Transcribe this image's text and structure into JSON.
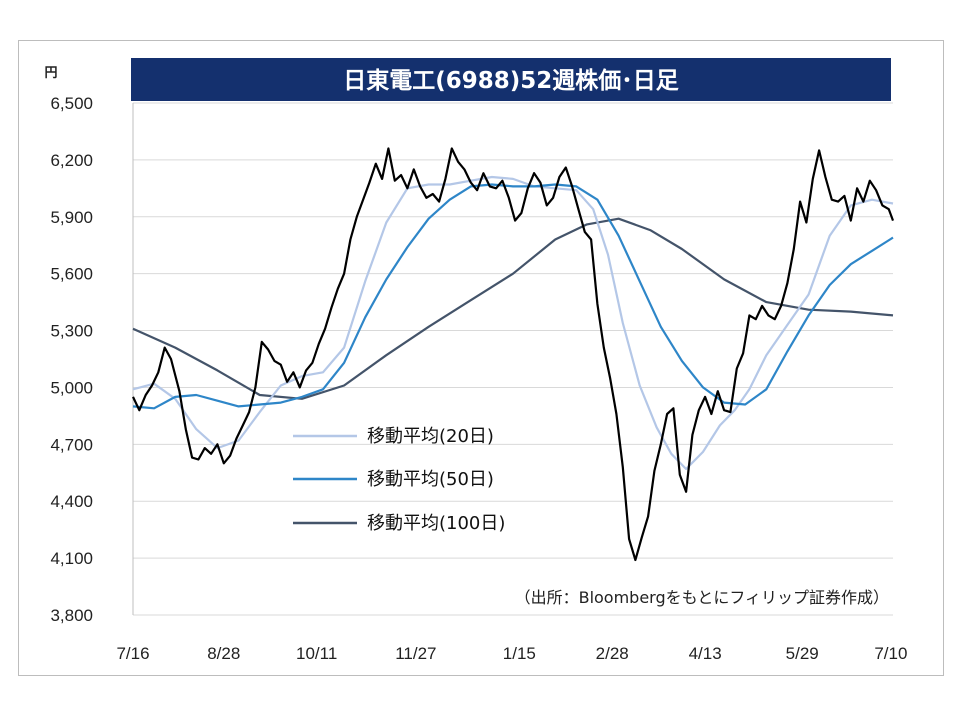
{
  "chart_data": {
    "type": "line",
    "title": "日東電工(6988)52週株価･日足",
    "unit": "円",
    "xlabel": "",
    "ylabel": "",
    "ylim": [
      3800,
      6500
    ],
    "y_ticks": [
      6500,
      6200,
      5900,
      5600,
      5300,
      5000,
      4700,
      4400,
      4100,
      3800
    ],
    "y_tick_labels": [
      "6,500",
      "6,200",
      "5,900",
      "5,600",
      "5,300",
      "5,000",
      "4,700",
      "4,400",
      "4,100",
      "3,800"
    ],
    "x_tick_labels": [
      "7/16",
      "8/28",
      "10/11",
      "11/27",
      "1/15",
      "2/28",
      "4/13",
      "5/29",
      "7/10"
    ],
    "x_range": [
      0,
      360
    ],
    "x_tick_days": [
      0,
      43,
      87,
      134,
      183,
      227,
      271,
      317,
      359
    ],
    "grid": true,
    "legend_position": "center-left",
    "source": "（出所：Bloombergをもとにフィリップ証券作成）",
    "colors": {
      "price": "#000000",
      "ma20": "#b4c7e7",
      "ma50": "#2e86c8",
      "ma100": "#44546a",
      "title_bg": "#14306e",
      "grid": "#d9d9d9"
    },
    "series": [
      {
        "key": "price",
        "name": "",
        "x": [
          0,
          3,
          6,
          9,
          12,
          15,
          18,
          22,
          25,
          28,
          31,
          34,
          37,
          40,
          43,
          46,
          49,
          52,
          55,
          58,
          61,
          64,
          67,
          70,
          73,
          76,
          79,
          82,
          85,
          88,
          91,
          94,
          97,
          100,
          103,
          106,
          109,
          112,
          115,
          118,
          121,
          124,
          127,
          130,
          133,
          136,
          139,
          142,
          145,
          148,
          151,
          154,
          157,
          160,
          163,
          166,
          169,
          172,
          175,
          178,
          181,
          184,
          187,
          190,
          193,
          196,
          199,
          202,
          205,
          208,
          211,
          214,
          217,
          220,
          223,
          226,
          229,
          232,
          235,
          238,
          241,
          244,
          247,
          250,
          253,
          256,
          259,
          262,
          265,
          268,
          271,
          274,
          277,
          280,
          283,
          286,
          289,
          292,
          295,
          298,
          301,
          304,
          307,
          310,
          313,
          316,
          319,
          322,
          325,
          328,
          331,
          334,
          337,
          340,
          343,
          346,
          349,
          352,
          355,
          358,
          360
        ],
        "values": [
          4950,
          4880,
          4960,
          5010,
          5080,
          5210,
          5150,
          4980,
          4780,
          4630,
          4620,
          4680,
          4650,
          4700,
          4600,
          4640,
          4730,
          4800,
          4870,
          5000,
          5240,
          5200,
          5140,
          5120,
          5030,
          5080,
          5000,
          5090,
          5130,
          5230,
          5310,
          5420,
          5520,
          5600,
          5780,
          5900,
          5990,
          6080,
          6180,
          6100,
          6260,
          6090,
          6120,
          6050,
          6150,
          6060,
          6000,
          6020,
          5980,
          6100,
          6260,
          6190,
          6150,
          6080,
          6040,
          6130,
          6060,
          6050,
          6090,
          6000,
          5880,
          5920,
          6050,
          6130,
          6080,
          5960,
          6000,
          6110,
          6160,
          6060,
          5940,
          5820,
          5780,
          5440,
          5210,
          5050,
          4860,
          4580,
          4200,
          4090,
          4210,
          4320,
          4560,
          4700,
          4860,
          4890,
          4540,
          4450,
          4750,
          4880,
          4950,
          4860,
          4980,
          4880,
          4870,
          5100,
          5180,
          5380,
          5360,
          5430,
          5380,
          5360,
          5430,
          5550,
          5730,
          5980,
          5870,
          6100,
          6250,
          6110,
          5990,
          5980,
          6010,
          5880,
          6050,
          5980,
          6090,
          6040,
          5960,
          5940,
          5880
        ]
      },
      {
        "key": "ma20",
        "name": "移動平均(20日)",
        "x": [
          0,
          10,
          20,
          30,
          40,
          50,
          60,
          70,
          80,
          90,
          100,
          110,
          120,
          130,
          140,
          150,
          160,
          170,
          180,
          190,
          200,
          210,
          218,
          225,
          232,
          240,
          248,
          255,
          262,
          270,
          278,
          285,
          292,
          300,
          310,
          320,
          330,
          340,
          350,
          360
        ],
        "values": [
          4990,
          5020,
          4940,
          4780,
          4680,
          4720,
          4870,
          5010,
          5060,
          5080,
          5210,
          5560,
          5870,
          6050,
          6070,
          6070,
          6090,
          6110,
          6100,
          6060,
          6050,
          6040,
          5940,
          5700,
          5340,
          5010,
          4790,
          4650,
          4570,
          4660,
          4800,
          4880,
          4990,
          5170,
          5330,
          5490,
          5800,
          5960,
          5990,
          5970
        ]
      },
      {
        "key": "ma50",
        "name": "移動平均(50日)",
        "x": [
          0,
          10,
          20,
          30,
          40,
          50,
          60,
          70,
          80,
          90,
          100,
          110,
          120,
          130,
          140,
          150,
          160,
          170,
          180,
          190,
          200,
          210,
          220,
          230,
          240,
          250,
          260,
          270,
          280,
          290,
          300,
          310,
          320,
          330,
          340,
          350,
          360
        ],
        "values": [
          4900,
          4890,
          4950,
          4960,
          4930,
          4900,
          4910,
          4920,
          4950,
          4990,
          5130,
          5370,
          5570,
          5740,
          5890,
          5990,
          6060,
          6070,
          6060,
          6060,
          6070,
          6060,
          5990,
          5800,
          5560,
          5320,
          5140,
          5000,
          4920,
          4910,
          4990,
          5190,
          5380,
          5540,
          5650,
          5720,
          5790
        ]
      },
      {
        "key": "ma100",
        "name": "移動平均(100日)",
        "x": [
          0,
          20,
          40,
          60,
          80,
          100,
          120,
          140,
          160,
          180,
          200,
          215,
          230,
          245,
          260,
          280,
          300,
          320,
          340,
          360
        ],
        "values": [
          5310,
          5210,
          5090,
          4960,
          4940,
          5010,
          5170,
          5320,
          5460,
          5600,
          5780,
          5860,
          5890,
          5830,
          5730,
          5570,
          5450,
          5410,
          5400,
          5380
        ]
      }
    ]
  }
}
